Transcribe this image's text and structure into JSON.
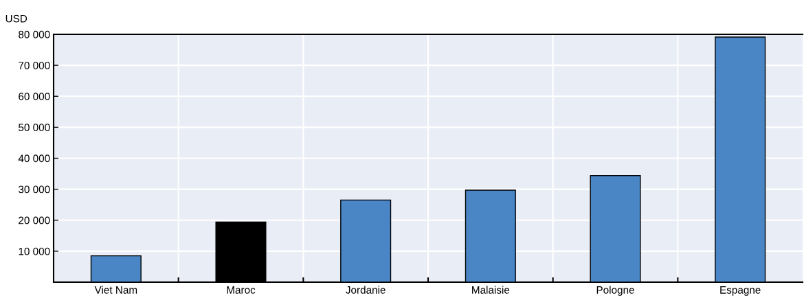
{
  "chart_data": {
    "type": "bar",
    "ylabel": "USD",
    "categories": [
      "Viet Nam",
      "Maroc",
      "Jordanie",
      "Malaisie",
      "Pologne",
      "Espagne"
    ],
    "values": [
      8500,
      19400,
      26500,
      29700,
      34400,
      79100
    ],
    "colors": [
      "#4a86c5",
      "#000000",
      "#4a86c5",
      "#4a86c5",
      "#4a86c5",
      "#4a86c5"
    ],
    "ylim": [
      0,
      80000
    ],
    "yticks": [
      {
        "value": 10000,
        "label": "10 000"
      },
      {
        "value": 20000,
        "label": "20 000"
      },
      {
        "value": 30000,
        "label": "30 000"
      },
      {
        "value": 40000,
        "label": "40 000"
      },
      {
        "value": 50000,
        "label": "50 000"
      },
      {
        "value": 60000,
        "label": "60 000"
      },
      {
        "value": 70000,
        "label": "70 000"
      },
      {
        "value": 80000,
        "label": "80 000"
      }
    ],
    "grid": true
  }
}
